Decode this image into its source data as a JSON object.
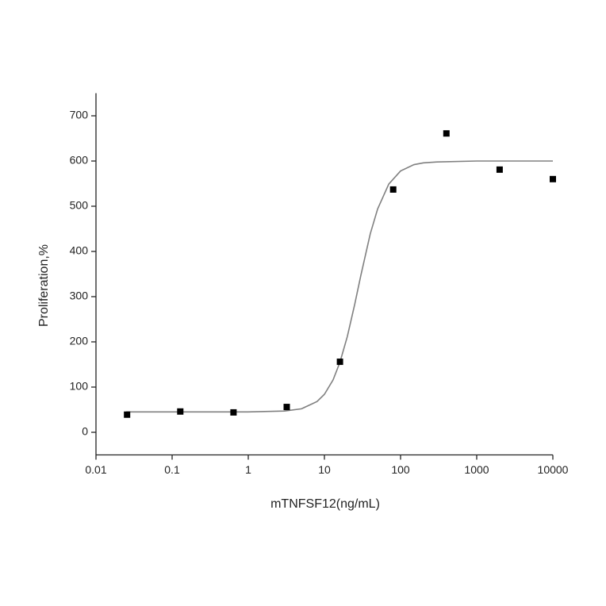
{
  "chart_data": {
    "type": "scatter",
    "x_label": "mTNFSF12(ng/mL)",
    "y_label": "Proliferation,%",
    "x_scale": "log",
    "xlim": [
      0.01,
      10000
    ],
    "xticks": [
      0.01,
      0.1,
      1,
      10,
      100,
      1000,
      10000
    ],
    "ylim": [
      -50,
      750
    ],
    "yticks": [
      0,
      100,
      200,
      300,
      400,
      500,
      600,
      700
    ],
    "series": [
      {
        "type": "scatter",
        "color": "#000000",
        "x": [
          0.0256,
          0.128,
          0.64,
          3.2,
          16,
          80,
          400,
          2000,
          10000
        ],
        "values": [
          39,
          46,
          44,
          56,
          156,
          537,
          661,
          581,
          560
        ]
      },
      {
        "type": "line",
        "color": "#808080",
        "x": [
          0.025,
          0.1,
          1,
          3,
          5,
          8,
          10,
          13,
          16,
          20,
          25,
          30,
          40,
          50,
          70,
          100,
          150,
          200,
          300,
          1000,
          10000
        ],
        "values": [
          45,
          45,
          45,
          47,
          52,
          68,
          84,
          116,
          155,
          212,
          283,
          346,
          439,
          494,
          549,
          578,
          592,
          596,
          598,
          600,
          600
        ]
      }
    ]
  }
}
